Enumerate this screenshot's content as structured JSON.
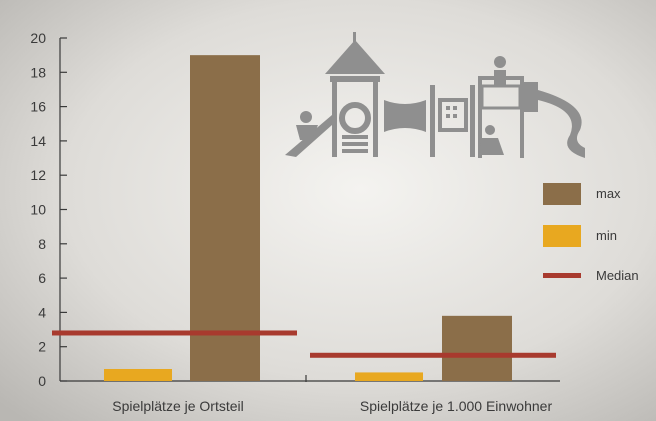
{
  "chart_data": {
    "type": "bar",
    "categories": [
      "Spielplätze je Ortsteil",
      "Spielplätze je 1.000 Einwohner"
    ],
    "series": [
      {
        "name": "min",
        "values": [
          0.7,
          0.5
        ],
        "color": "#e8a820"
      },
      {
        "name": "max",
        "values": [
          19,
          3.8
        ],
        "color": "#8b6e49"
      }
    ],
    "median": {
      "name": "Median",
      "values": [
        2.8,
        1.5
      ],
      "color": "#a83a2e"
    },
    "yticks": [
      0,
      2,
      4,
      6,
      8,
      10,
      12,
      14,
      16,
      18,
      20
    ],
    "ylim": [
      0,
      20
    ],
    "legend": {
      "position": "right",
      "entries": [
        "max",
        "min",
        "Median"
      ]
    },
    "grid": false,
    "illustration": "playground-equipment-icon"
  }
}
